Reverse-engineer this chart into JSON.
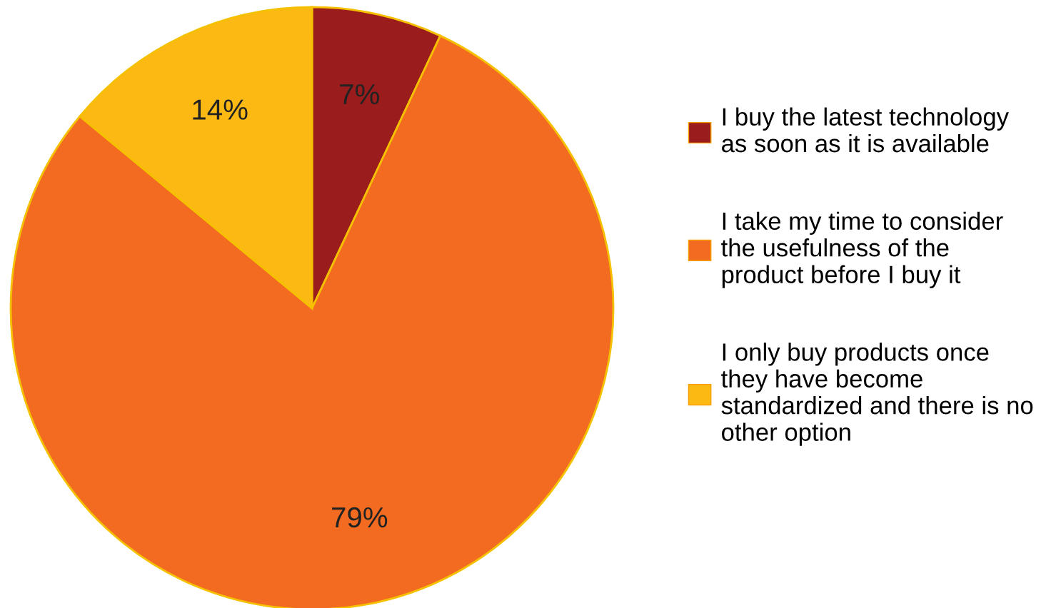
{
  "chart_data": {
    "type": "pie",
    "categories": [
      "I buy the latest technology\nas soon as it is available",
      "I take my time to consider\nthe usefulness of the\nproduct before I buy it",
      "I only buy products once\nthey have become\nstandardized and there is no\nother option"
    ],
    "values": [
      7,
      79,
      14
    ],
    "colors": [
      "#9b1c1c",
      "#f26b21",
      "#fdb913"
    ],
    "value_labels": [
      "7%",
      "79%",
      "14%"
    ],
    "legend": "right"
  }
}
